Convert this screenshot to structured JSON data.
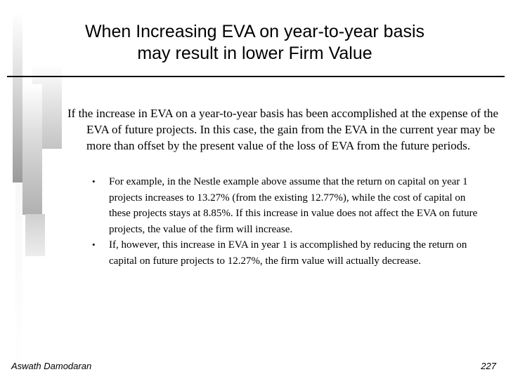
{
  "title_lines": [
    "When Increasing EVA on year-to-year basis",
    "may result in lower Firm Value"
  ],
  "main_paragraph": "If the increase in EVA on a year-to-year basis has been accomplished at the expense of the EVA of future projects. In this case, the gain from the EVA in the current year may be more than offset by the present value of the loss of EVA from the future periods.",
  "bullets": [
    "For example, in the Nestle example above assume that the return on capital on year 1 projects increases to 13.27% (from the existing 12.77%), while the cost of capital on these projects stays at 8.85%. If this increase in value does not affect the EVA on future projects, the value of the firm will increase.",
    "If, however, this increase in EVA in year 1 is accomplished by reducing the return on capital on future projects to 12.27%, the firm value will actually decrease."
  ],
  "bullet_glyph": "•",
  "footer": {
    "author": "Aswath Damodaran",
    "page_number": "227"
  }
}
